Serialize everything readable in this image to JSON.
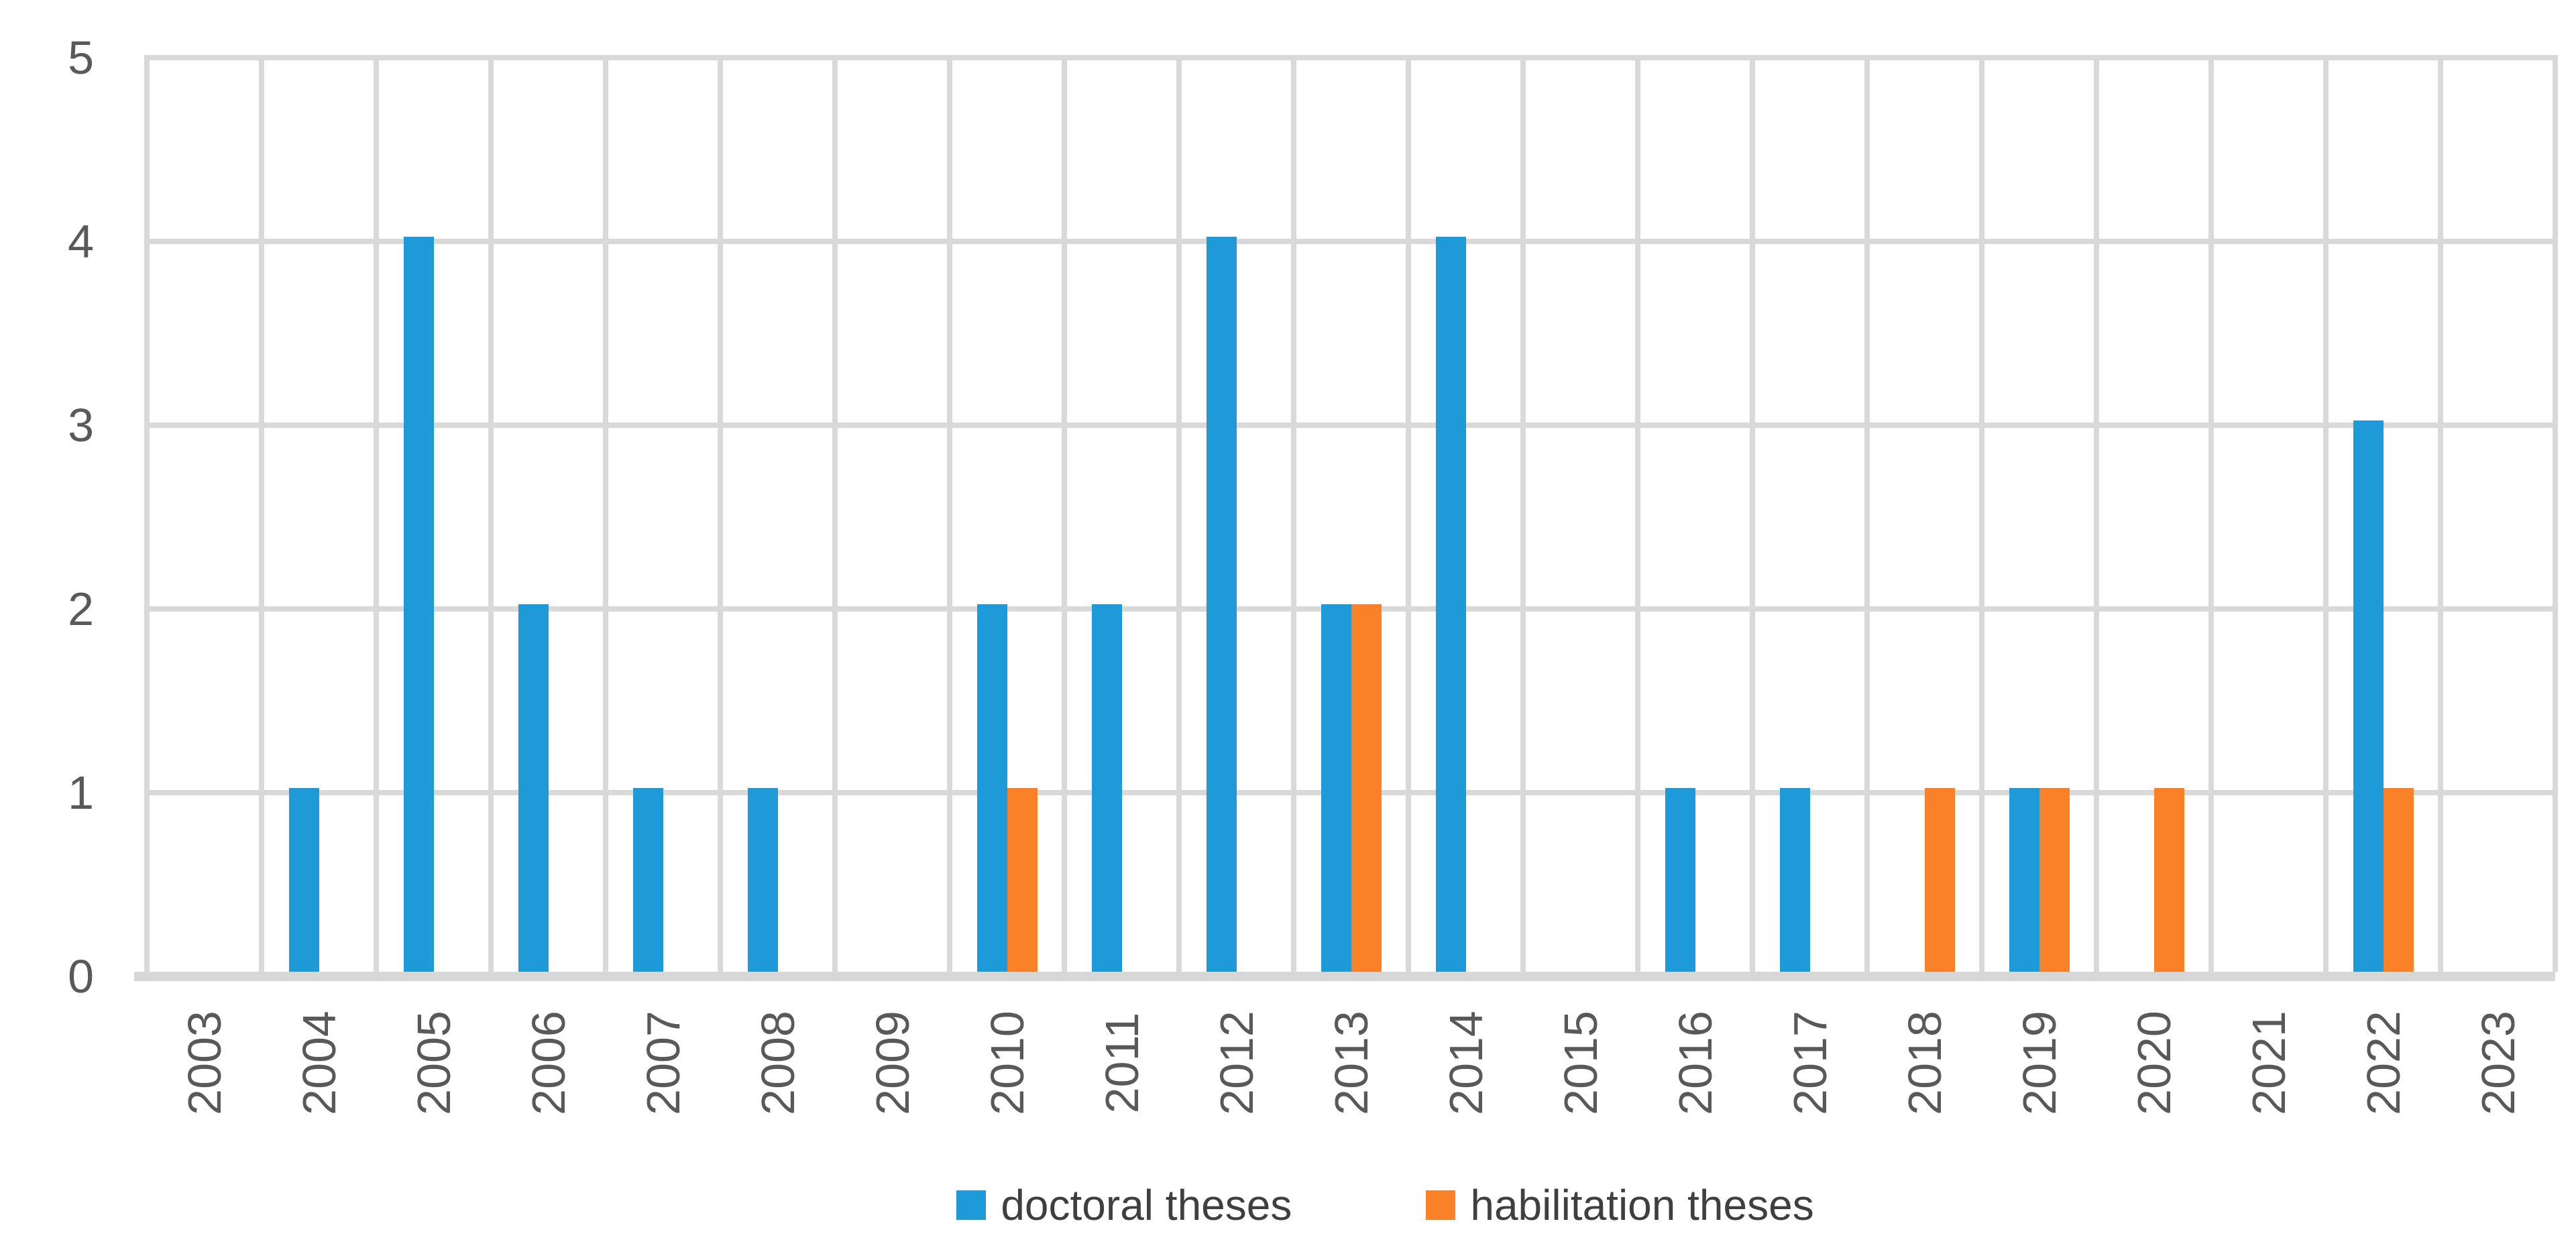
{
  "chart_data": {
    "type": "bar",
    "title": "",
    "xlabel": "",
    "ylabel": "",
    "categories": [
      "2003",
      "2004",
      "2005",
      "2006",
      "2007",
      "2008",
      "2009",
      "2010",
      "2011",
      "2012",
      "2013",
      "2014",
      "2015",
      "2016",
      "2017",
      "2018",
      "2019",
      "2020",
      "2021",
      "2022",
      "2023"
    ],
    "series": [
      {
        "name": "doctoral theses",
        "color": "#1f9ad8",
        "values": [
          0,
          1,
          4,
          2,
          1,
          1,
          0,
          2,
          2,
          4,
          2,
          4,
          0,
          1,
          1,
          0,
          1,
          0,
          0,
          3,
          0
        ]
      },
      {
        "name": "habilitation theses",
        "color": "#fb8129",
        "values": [
          0,
          0,
          0,
          0,
          0,
          0,
          0,
          1,
          0,
          0,
          2,
          0,
          0,
          0,
          0,
          1,
          1,
          1,
          0,
          1,
          0
        ]
      }
    ],
    "ylim": [
      0,
      5
    ],
    "yticks": [
      0,
      1,
      2,
      3,
      4,
      5
    ],
    "grid": "both",
    "gridline_color": "#d9d9d9",
    "axis_line_color": "#d7d7d7",
    "tick_label_color": "#595959",
    "legend_text_color": "#3f3f3f",
    "legend_position": "bottom"
  }
}
